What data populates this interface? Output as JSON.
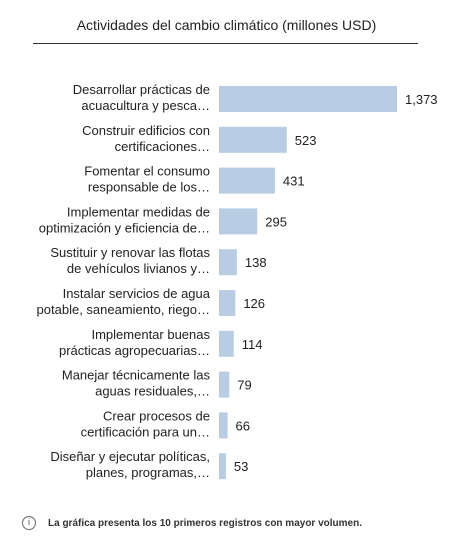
{
  "chart_data": {
    "type": "bar",
    "orientation": "horizontal",
    "title": "Actividades del cambio climático (millones USD)",
    "categories": [
      [
        "Desarrollar prácticas de",
        "acuacultura y pesca…"
      ],
      [
        "Construir edificios con",
        "certificaciones…"
      ],
      [
        "Fomentar el consumo",
        "responsable de los…"
      ],
      [
        "Implementar medidas de",
        "optimización y eficiencia de…"
      ],
      [
        "Sustituir y renovar las flotas",
        "de vehículos livianos y…"
      ],
      [
        "Instalar servicios de agua",
        "potable, saneamiento, riego…"
      ],
      [
        "Implementar buenas",
        "prácticas agropecuarias…"
      ],
      [
        "Manejar técnicamente las",
        "aguas residuales,…"
      ],
      [
        "Crear procesos de",
        "certificación para un…"
      ],
      [
        "Diseñar y ejecutar políticas,",
        "planes, programas,…"
      ]
    ],
    "values": [
      1373,
      523,
      431,
      295,
      138,
      126,
      114,
      79,
      66,
      53
    ],
    "value_labels": [
      "1,373",
      "523",
      "431",
      "295",
      "138",
      "126",
      "114",
      "79",
      "66",
      "53"
    ],
    "xlim": [
      0,
      1373
    ],
    "grid": false,
    "bar_color": "#b8cce4"
  },
  "footnote": {
    "icon": "info-icon",
    "text": "La gráfica presenta los  10 primeros registros con mayor volumen."
  }
}
